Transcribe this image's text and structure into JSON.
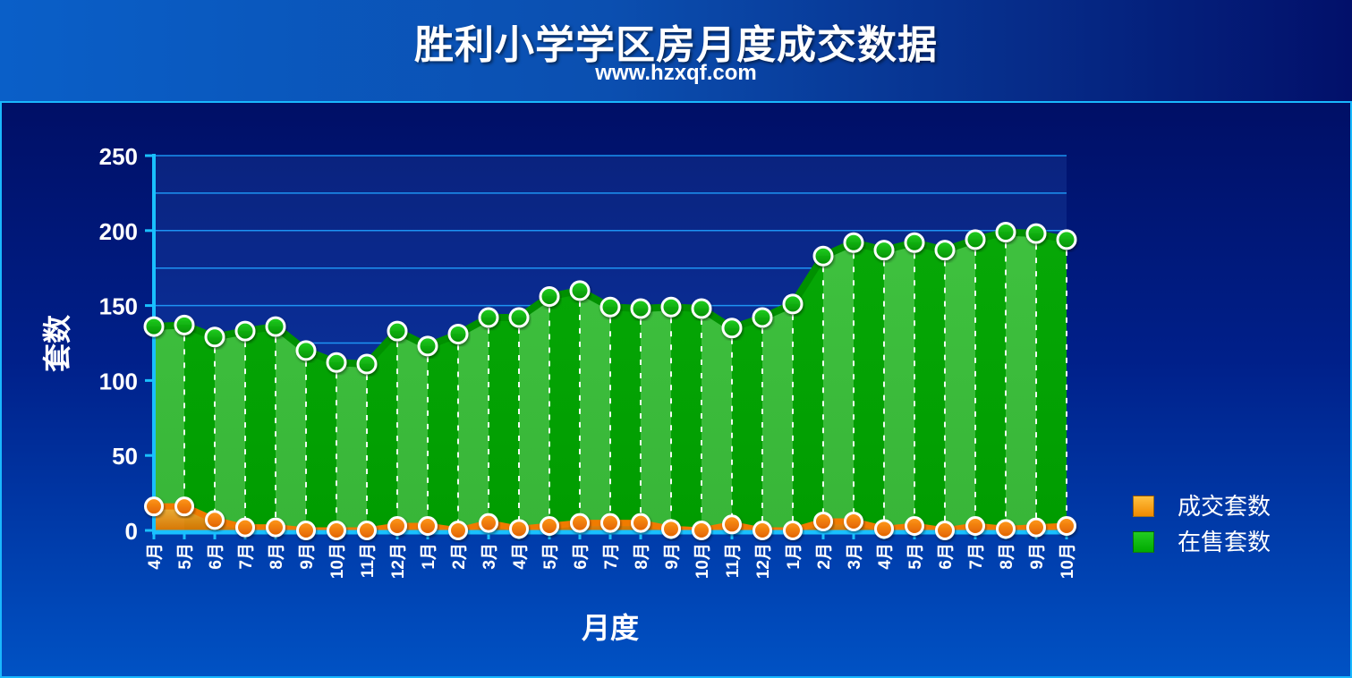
{
  "header": {
    "title": "胜利小学学区房月度成交数据",
    "subtitle": "www.hzxqf.com"
  },
  "chart_data": {
    "type": "area",
    "title": "胜利小学学区房月度成交数据",
    "subtitle": "www.hzxqf.com",
    "xlabel": "月度",
    "ylabel": "套数",
    "ylim": [
      0,
      250
    ],
    "yticks": [
      0,
      50,
      100,
      150,
      200,
      250
    ],
    "grid": true,
    "legend_position": "right",
    "categories": [
      "4月",
      "5月",
      "6月",
      "7月",
      "8月",
      "9月",
      "10月",
      "11月",
      "12月",
      "1月",
      "2月",
      "3月",
      "4月",
      "5月",
      "6月",
      "7月",
      "8月",
      "9月",
      "10月",
      "11月",
      "12月",
      "1月",
      "2月",
      "3月",
      "4月",
      "5月",
      "6月",
      "7月",
      "8月",
      "9月",
      "10月"
    ],
    "series": [
      {
        "name": "在售套数",
        "color": "#00b400",
        "values": [
          136,
          137,
          129,
          133,
          136,
          120,
          112,
          111,
          133,
          123,
          131,
          142,
          142,
          156,
          160,
          149,
          148,
          149,
          148,
          135,
          142,
          151,
          183,
          192,
          187,
          192,
          187,
          194,
          199,
          198,
          194
        ]
      },
      {
        "name": "成交套数",
        "color": "#f07b00",
        "values": [
          16,
          16,
          7,
          2,
          2,
          0,
          0,
          0,
          3,
          3,
          0,
          5,
          1,
          3,
          5,
          5,
          5,
          1,
          0,
          4,
          0,
          0,
          6,
          6,
          1,
          3,
          0,
          3,
          1,
          2,
          3
        ]
      }
    ]
  },
  "legend": {
    "items": [
      {
        "label": "成交套数",
        "color": "#f08a00"
      },
      {
        "label": "在售套数",
        "color": "#00aa00"
      }
    ]
  }
}
